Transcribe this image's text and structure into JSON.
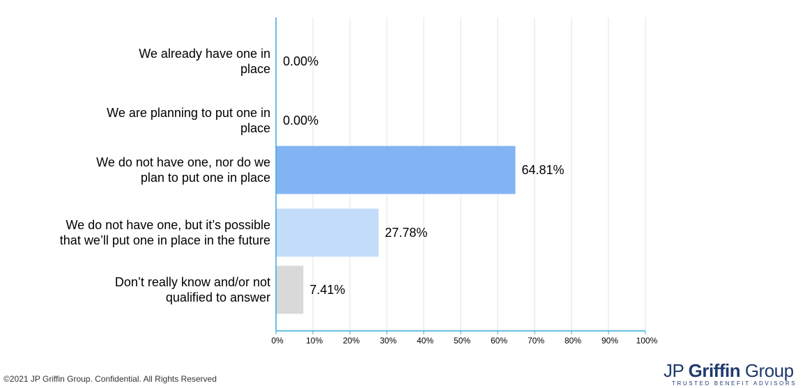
{
  "chart_data": {
    "type": "bar",
    "orientation": "horizontal",
    "categories": [
      [
        "We already have one in",
        "place"
      ],
      [
        "We are planning to put one in",
        "place"
      ],
      [
        "We do not have one, nor do we",
        "plan to put one in place"
      ],
      [
        "We do not have one, but it’s possible",
        "that we’ll put one in place in the future"
      ],
      [
        "Don’t really know and/or not",
        "qualified to answer"
      ]
    ],
    "values": [
      0.0,
      0.0,
      64.81,
      27.78,
      7.41
    ],
    "value_labels": [
      "0.00%",
      "0.00%",
      "64.81%",
      "27.78%",
      "7.41%"
    ],
    "colors": [
      "#82b4f4",
      "#82b4f4",
      "#82b4f4",
      "#c2dcfa",
      "#d9d9d9"
    ],
    "axis_color": "#3aa8d8",
    "grid_color": "#e3e3e3",
    "xlim": [
      0,
      100
    ],
    "xticks": [
      0,
      10,
      20,
      30,
      40,
      50,
      60,
      70,
      80,
      90,
      100
    ],
    "xtick_labels": [
      "0%",
      "10%",
      "20%",
      "30%",
      "40%",
      "50%",
      "60%",
      "70%",
      "80%",
      "90%",
      "100%"
    ],
    "grid": true
  },
  "footer": {
    "copyright": "©2021 JP Griffin Group. Confidential. All Rights Reserved"
  },
  "logo": {
    "part1": "JP ",
    "part2": "Griffin",
    "part3": " Group",
    "tagline": "TRUSTED BENEFIT ADVISORS"
  }
}
